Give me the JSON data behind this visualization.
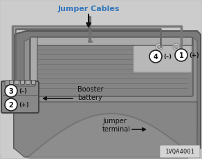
{
  "fig_width": 2.92,
  "fig_height": 2.31,
  "dpi": 100,
  "bg_color": "#c0c0c0",
  "label_jumper_cables": "Jumper Cables",
  "label_booster_battery": "Booster\nbattery",
  "label_jumper_terminal": "Jumper\nterminal",
  "label_id": "1VQA4001",
  "label_1": "1",
  "label_2": "2",
  "label_3": "3",
  "label_4": "4",
  "sign_1": "(+)",
  "sign_2": "(+)",
  "sign_3": "(–)",
  "sign_4": "(–)",
  "circle_color": "#ffffff",
  "circle_edge": "#222222",
  "text_color_blue": "#3377bb",
  "text_color_dark": "#111111",
  "text_color_id": "#222222",
  "wire_color_pos": "#888888",
  "wire_color_neg": "#666666"
}
